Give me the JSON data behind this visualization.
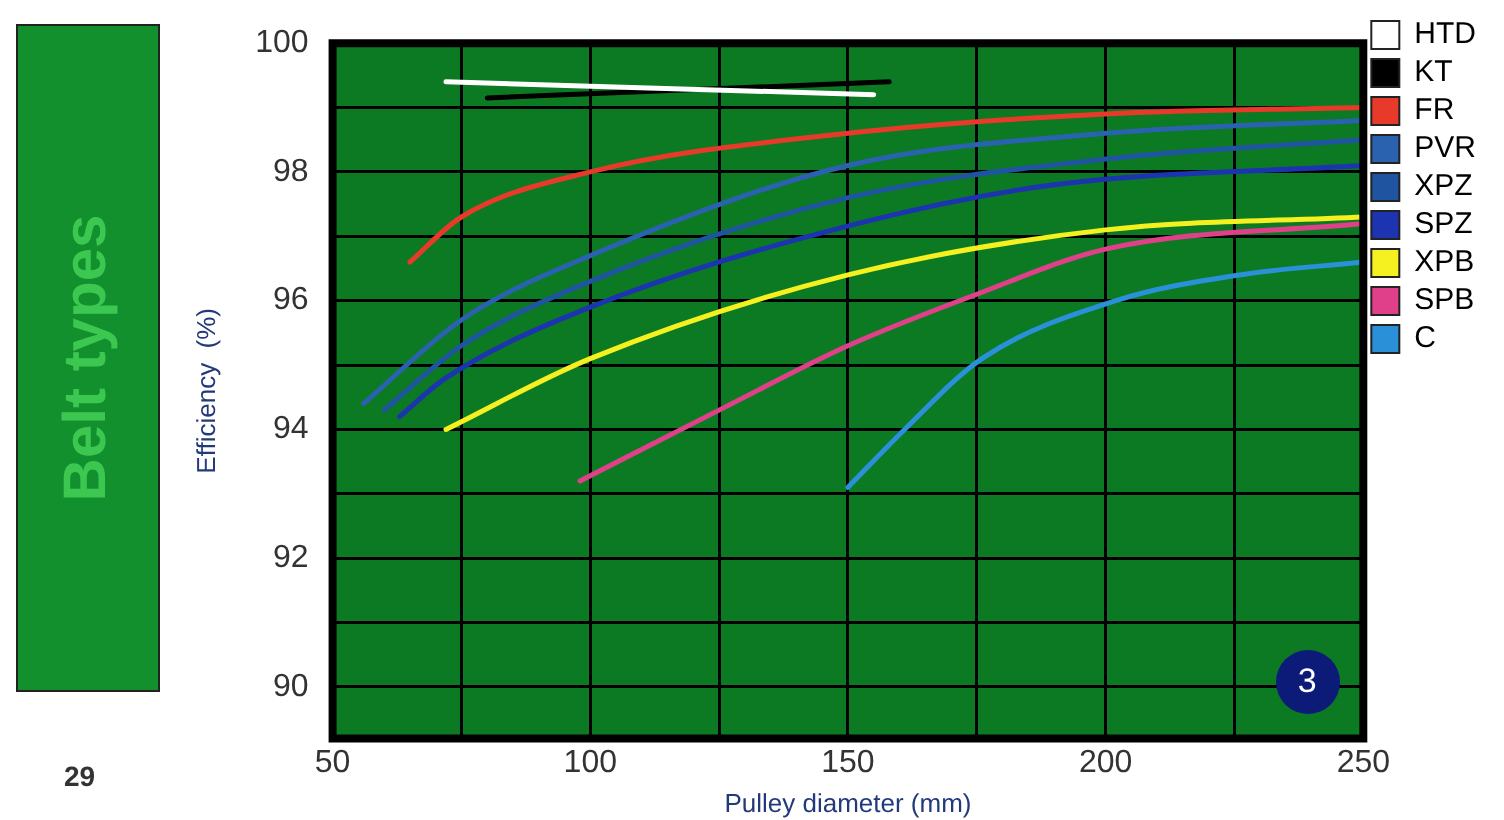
{
  "chart_data": {
    "type": "line",
    "xlabel": "Pulley diameter (mm)",
    "ylabel": "Efficiency  (%)",
    "xlim": [
      50,
      250
    ],
    "xticks": [
      50,
      {
        "value": 75,
        "label": null
      },
      100,
      {
        "value": 125,
        "label": null
      },
      150,
      {
        "value": 175,
        "label": null
      },
      200,
      {
        "value": 225,
        "label": null
      },
      250
    ],
    "ylim": [
      89.2,
      100
    ],
    "yticks": [
      90,
      {
        "value": 91,
        "label": null
      },
      92,
      {
        "value": 93,
        "label": null
      },
      94,
      {
        "value": 95,
        "label": null
      },
      96,
      {
        "value": 97,
        "label": null
      },
      98,
      {
        "value": 99,
        "label": null
      },
      100
    ],
    "grid": true,
    "legend": "right",
    "marker": "none",
    "line_style": "solid",
    "annotations": [
      "Belt types",
      "29",
      "3"
    ],
    "series": [
      {
        "name": "HTD",
        "color": "#ffffff",
        "x": [
          72,
          155
        ],
        "values": [
          99.4,
          99.2
        ]
      },
      {
        "name": "KT",
        "color": "#000000",
        "x": [
          80,
          158
        ],
        "values": [
          99.15,
          99.4
        ]
      },
      {
        "name": "FR",
        "color": "#e83a2a",
        "x": [
          65,
          75,
          100,
          150,
          200,
          250
        ],
        "values": [
          96.6,
          97.3,
          98,
          98.6,
          98.9,
          99
        ]
      },
      {
        "name": "PVR",
        "color": "#2a62b0",
        "x": [
          56,
          75,
          100,
          150,
          200,
          250
        ],
        "values": [
          94.4,
          95.7,
          96.7,
          98.1,
          98.6,
          98.8
        ]
      },
      {
        "name": "XPZ",
        "color": "#1f55a0",
        "x": [
          60,
          75,
          100,
          150,
          200,
          250
        ],
        "values": [
          94.3,
          95.3,
          96.3,
          97.6,
          98.2,
          98.5
        ]
      },
      {
        "name": "SPZ",
        "color": "#1c34b0",
        "x": [
          63,
          72,
          100,
          152,
          190,
          250
        ],
        "values": [
          94.2,
          94.8,
          95.9,
          97.2,
          97.8,
          98.1
        ]
      },
      {
        "name": "XPB",
        "color": "#f5f020",
        "x": [
          72,
          100,
          150,
          200,
          250
        ],
        "values": [
          94,
          95.1,
          96.4,
          97.1,
          97.3
        ]
      },
      {
        "name": "SPB",
        "color": "#e0408a",
        "x": [
          98,
          125,
          150,
          175,
          200,
          250
        ],
        "values": [
          93.2,
          94.3,
          95.3,
          96.1,
          96.8,
          97.2
        ]
      },
      {
        "name": "C",
        "color": "#2a90d8",
        "x": [
          150,
          161,
          176,
          202,
          226,
          250
        ],
        "values": [
          93.1,
          94,
          95.1,
          96,
          96.4,
          96.6
        ]
      }
    ]
  }
}
